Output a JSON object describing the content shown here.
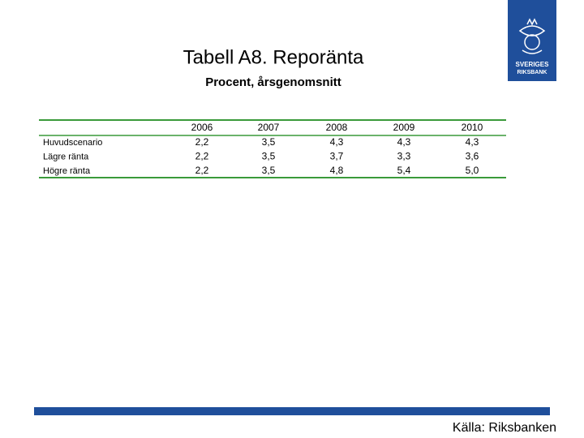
{
  "header": {
    "title": "Tabell A8. Reporänta",
    "subtitle": "Procent, årsgenomsnitt"
  },
  "logo": {
    "lines": [
      "SVERIGES",
      "RIKSBANK"
    ]
  },
  "table": {
    "columns": [
      "2006",
      "2007",
      "2008",
      "2009",
      "2010"
    ],
    "rows": [
      {
        "label": "Huvudscenario",
        "values": [
          "2,2",
          "3,5",
          "4,3",
          "4,3",
          "4,3"
        ]
      },
      {
        "label": "Lägre ränta",
        "values": [
          "2,2",
          "3,5",
          "3,7",
          "3,3",
          "3,6"
        ]
      },
      {
        "label": "Högre ränta",
        "values": [
          "2,2",
          "3,5",
          "4,8",
          "5,4",
          "5,0"
        ]
      }
    ]
  },
  "footer": {
    "source": "Källa: Riksbanken"
  }
}
